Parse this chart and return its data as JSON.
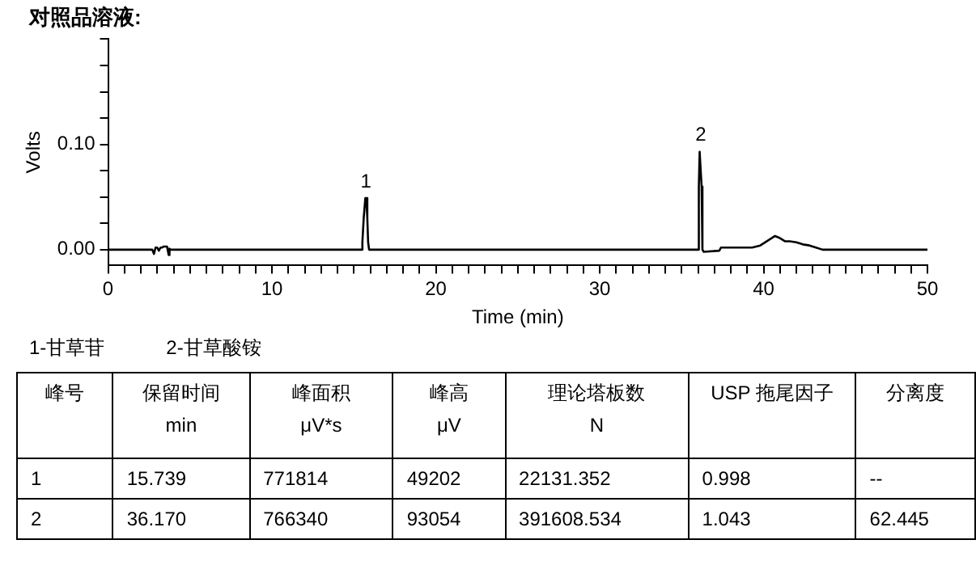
{
  "chart_data": {
    "type": "line",
    "title": "对照品溶液:",
    "xlabel": "Time (min)",
    "ylabel": "Volts",
    "x": [
      0,
      2.7,
      2.8,
      2.9,
      3.0,
      3.1,
      3.2,
      3.3,
      3.4,
      3.6,
      3.7,
      3.75,
      3.8,
      3.9,
      15.45,
      15.52,
      15.6,
      15.7,
      15.76,
      15.82,
      15.87,
      15.93,
      36.0,
      36.05,
      36.1,
      36.17,
      36.22,
      36.27,
      36.35,
      37.3,
      37.4,
      39.3,
      39.8,
      40.3,
      40.7,
      41.0,
      41.3,
      41.6,
      42.0,
      42.4,
      42.8,
      43.2,
      43.6,
      50
    ],
    "values": [
      0,
      0,
      -0.004,
      0.002,
      0.002,
      -0.001,
      0.002,
      0.002,
      0.003,
      0.003,
      -0.005,
      0.001,
      0,
      0,
      0,
      0.007,
      0.03,
      0.049,
      0.049,
      0.03,
      0.007,
      0,
      0,
      0.06,
      0.093,
      0.093,
      0.06,
      0,
      -0.002,
      -0.001,
      0.002,
      0.002,
      0.004,
      0.009,
      0.013,
      0.011,
      0.008,
      0.008,
      0.007,
      0.005,
      0.004,
      0.002,
      0,
      0
    ],
    "color": "#000000",
    "marker": "none",
    "line_style": "solid",
    "legend": false,
    "xlim": [
      0,
      50
    ],
    "xticks": [
      0,
      {
        "value": 1,
        "label": null
      },
      {
        "value": 2,
        "label": null
      },
      {
        "value": 3,
        "label": null
      },
      {
        "value": 4,
        "label": null
      },
      {
        "value": 5,
        "label": null
      },
      {
        "value": 6,
        "label": null
      },
      {
        "value": 7,
        "label": null
      },
      {
        "value": 8,
        "label": null
      },
      {
        "value": 9,
        "label": null
      },
      10,
      {
        "value": 11,
        "label": null
      },
      {
        "value": 12,
        "label": null
      },
      {
        "value": 13,
        "label": null
      },
      {
        "value": 14,
        "label": null
      },
      {
        "value": 15,
        "label": null
      },
      {
        "value": 16,
        "label": null
      },
      {
        "value": 17,
        "label": null
      },
      {
        "value": 18,
        "label": null
      },
      {
        "value": 19,
        "label": null
      },
      20,
      {
        "value": 21,
        "label": null
      },
      {
        "value": 22,
        "label": null
      },
      {
        "value": 23,
        "label": null
      },
      {
        "value": 24,
        "label": null
      },
      {
        "value": 25,
        "label": null
      },
      {
        "value": 26,
        "label": null
      },
      {
        "value": 27,
        "label": null
      },
      {
        "value": 28,
        "label": null
      },
      {
        "value": 29,
        "label": null
      },
      30,
      {
        "value": 31,
        "label": null
      },
      {
        "value": 32,
        "label": null
      },
      {
        "value": 33,
        "label": null
      },
      {
        "value": 34,
        "label": null
      },
      {
        "value": 35,
        "label": null
      },
      {
        "value": 36,
        "label": null
      },
      {
        "value": 37,
        "label": null
      },
      {
        "value": 38,
        "label": null
      },
      {
        "value": 39,
        "label": null
      },
      40,
      {
        "value": 41,
        "label": null
      },
      {
        "value": 42,
        "label": null
      },
      {
        "value": 43,
        "label": null
      },
      {
        "value": 44,
        "label": null
      },
      {
        "value": 45,
        "label": null
      },
      {
        "value": 46,
        "label": null
      },
      {
        "value": 47,
        "label": null
      },
      {
        "value": 48,
        "label": null
      },
      {
        "value": 49,
        "label": null
      },
      50
    ],
    "ylim": [
      -0.015,
      0.2
    ],
    "yticks": [
      {
        "value": 0,
        "label": "0.00"
      },
      {
        "value": 0.025,
        "label": null
      },
      {
        "value": 0.05,
        "label": null
      },
      {
        "value": 0.075,
        "label": null
      },
      {
        "value": 0.1,
        "label": "0.10"
      },
      {
        "value": 0.125,
        "label": null
      },
      {
        "value": 0.15,
        "label": null
      },
      {
        "value": 0.175,
        "label": null
      },
      {
        "value": 0.2,
        "label": null
      }
    ],
    "annotations": [
      {
        "text": "1",
        "x": 15.74,
        "y": 0.049
      },
      {
        "text": "2",
        "x": 36.17,
        "y": 0.093
      },
      "1-甘草苷",
      "2-甘草酸铵",
      "峰号",
      "保留时间\nmin",
      "峰面积\nμV*s",
      "峰高\nμV",
      "理论塔板数\nN",
      "USP 拖尾因子",
      "分离度",
      "1",
      "15.739",
      "771814",
      "49202",
      "22131.352",
      "0.998",
      "--",
      "2",
      "36.170",
      "766340",
      "93054",
      "391608.534",
      "1.043",
      "62.445"
    ]
  }
}
